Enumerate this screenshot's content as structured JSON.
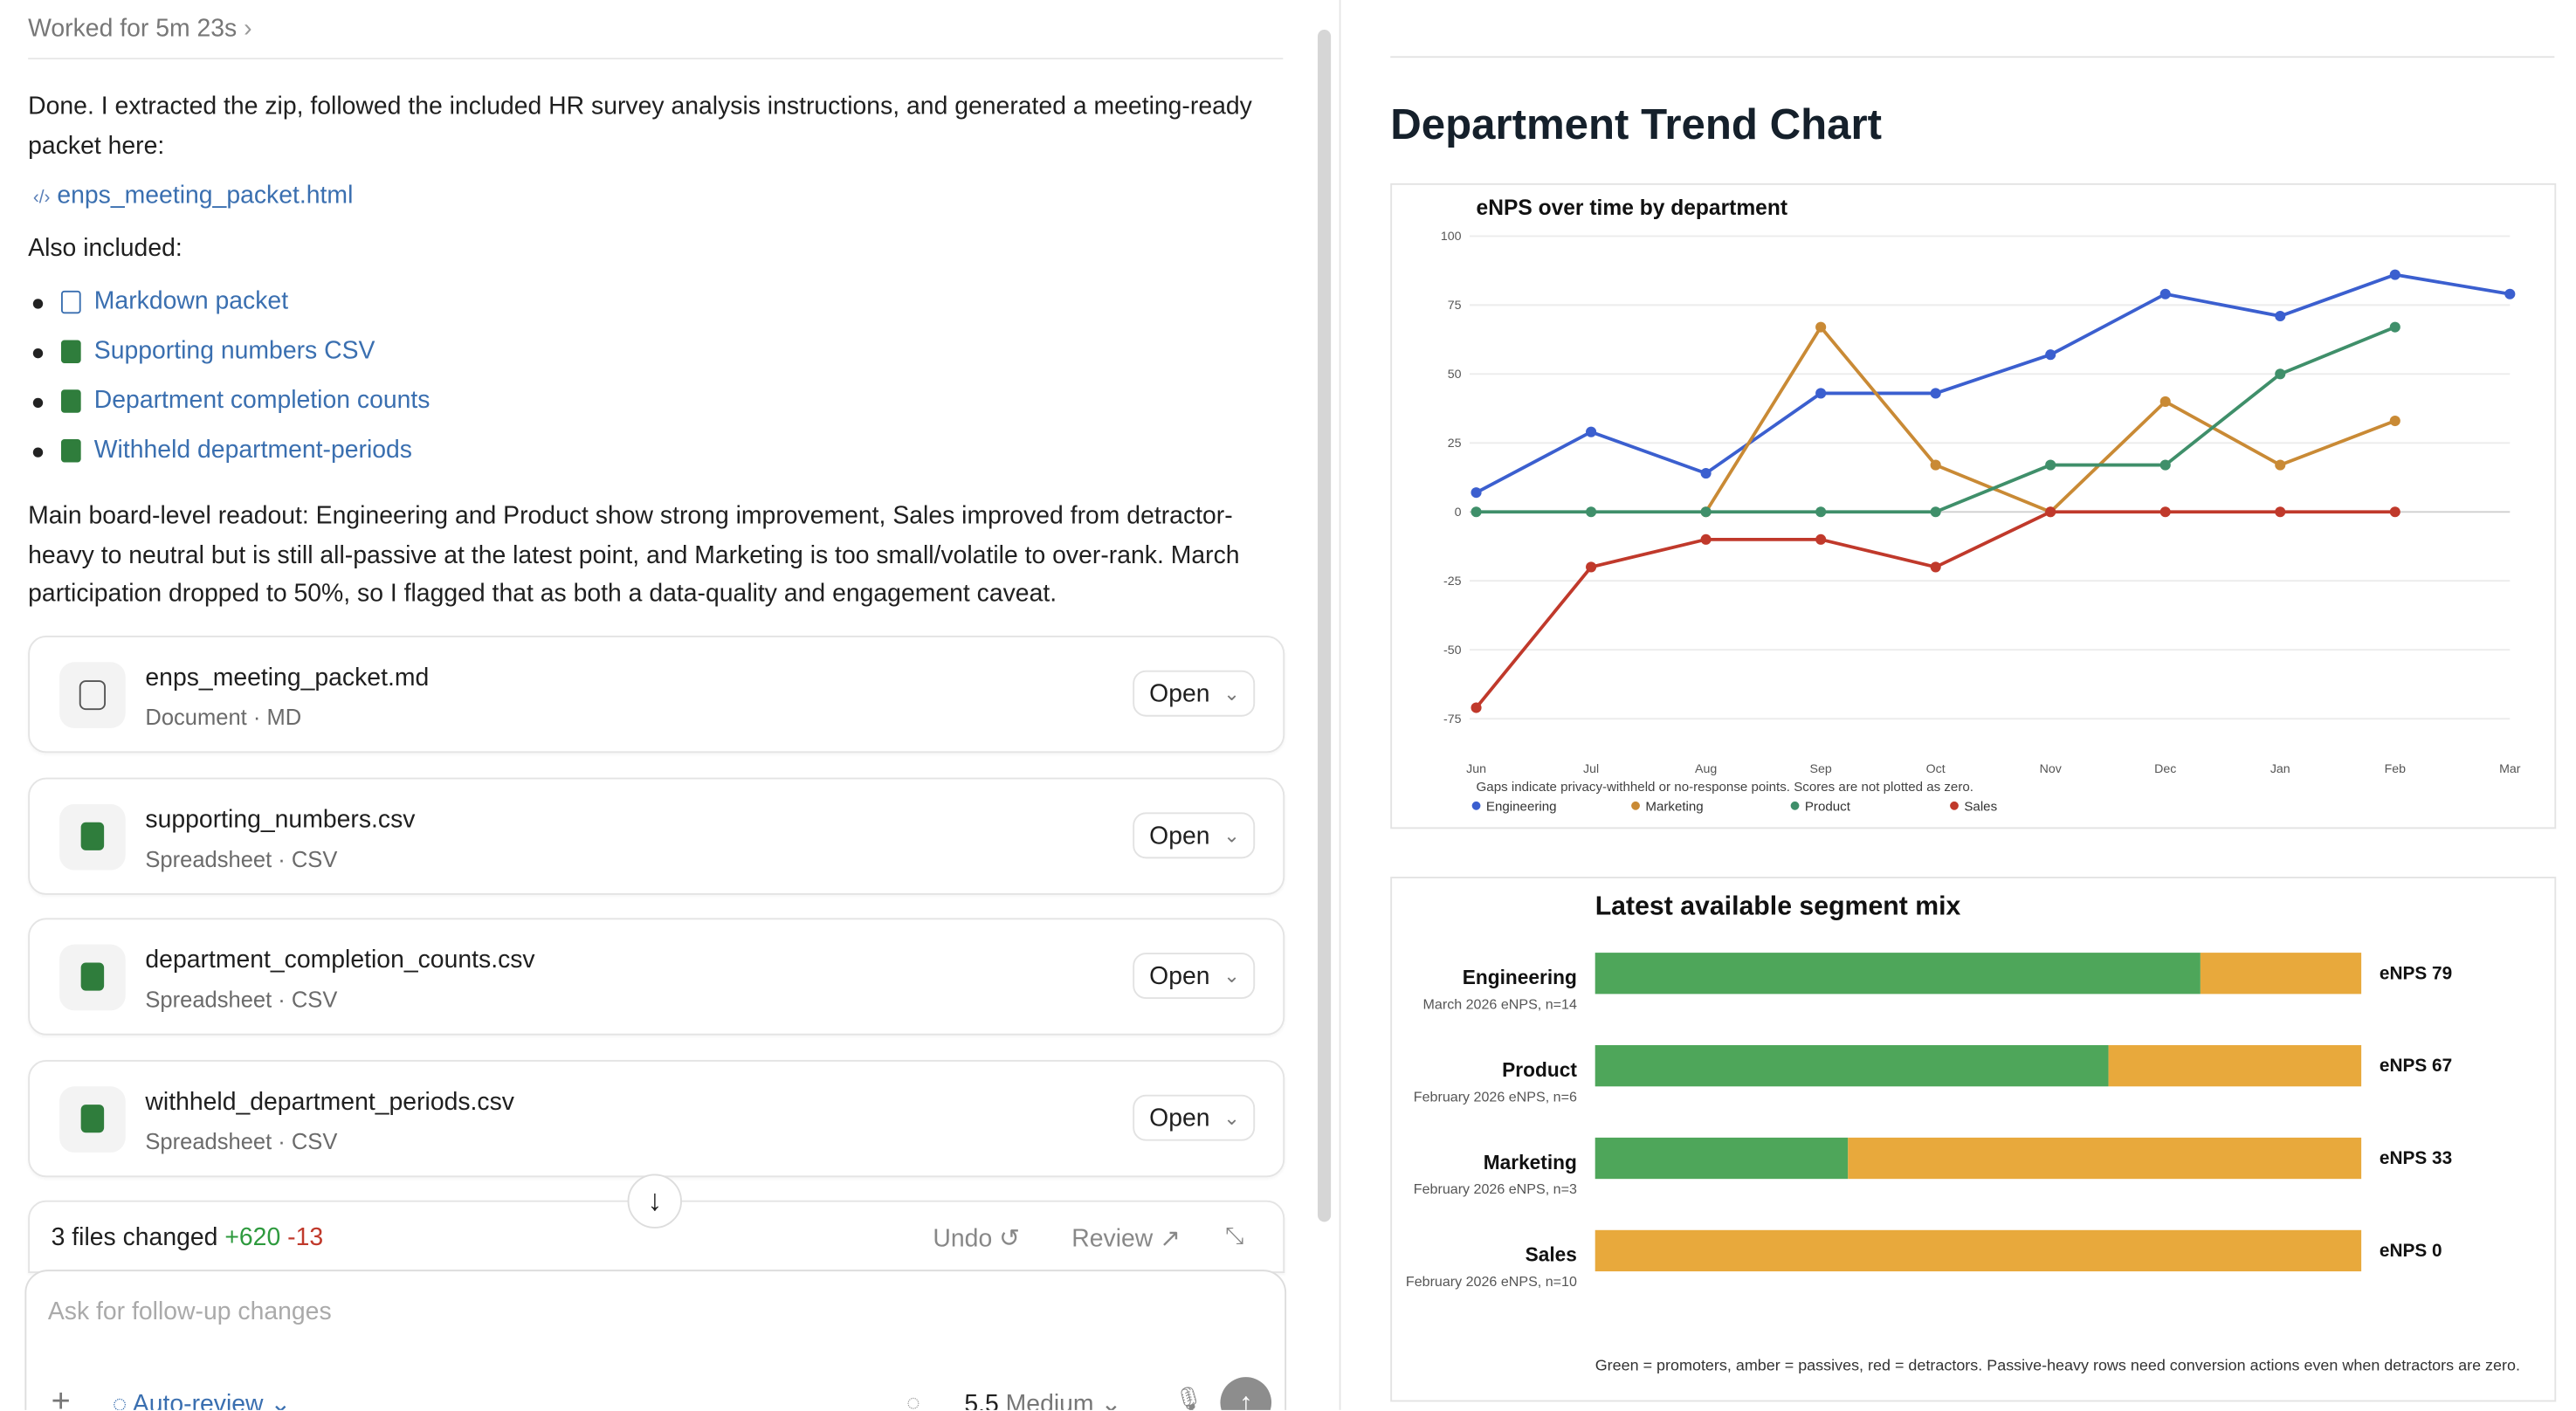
{
  "header": {
    "status": "Worked for 5m 23s"
  },
  "message": {
    "intro": "Done. I extracted the zip, followed the included HR survey analysis instructions, and generated a meeting-ready packet here:",
    "main_link": "enps_meeting_packet.html",
    "also_label": "Also included:",
    "links": [
      "Markdown packet",
      "Supporting numbers CSV",
      "Department completion counts",
      "Withheld department-periods"
    ],
    "readout": "Main board-level readout: Engineering and Product show strong improvement, Sales improved from detractor-heavy to neutral but is still all-passive at the latest point, and Marketing is too small/volatile to over-rank. March participation dropped to 50%, so I flagged that as both a data-quality and engagement caveat."
  },
  "files": [
    {
      "name": "enps_meeting_packet.md",
      "kind": "Document · MD",
      "action": "Open"
    },
    {
      "name": "supporting_numbers.csv",
      "kind": "Spreadsheet · CSV",
      "action": "Open"
    },
    {
      "name": "department_completion_counts.csv",
      "kind": "Spreadsheet · CSV",
      "action": "Open"
    },
    {
      "name": "withheld_department_periods.csv",
      "kind": "Spreadsheet · CSV",
      "action": "Open"
    }
  ],
  "changes": {
    "summary": "3 files changed",
    "added": "+620",
    "removed": "-13",
    "undo": "Undo",
    "review": "Review"
  },
  "composer": {
    "placeholder": "Ask for follow-up changes",
    "mode": "Auto-review",
    "model": "5.5",
    "effort": "Medium"
  },
  "report": {
    "title": "Department Trend Chart"
  },
  "chart_data": [
    {
      "type": "line",
      "title": "eNPS over time by department",
      "categories": [
        "Jun",
        "Jul",
        "Aug",
        "Sep",
        "Oct",
        "Nov",
        "Dec",
        "Jan",
        "Feb",
        "Mar"
      ],
      "series": [
        {
          "name": "Engineering",
          "color": "#3b5fcf",
          "values": [
            7,
            29,
            14,
            43,
            43,
            57,
            79,
            71,
            86,
            79
          ]
        },
        {
          "name": "Marketing",
          "color": "#c98a35",
          "values": [
            null,
            null,
            0,
            67,
            17,
            0,
            40,
            17,
            33,
            null
          ]
        },
        {
          "name": "Product",
          "color": "#3f8f6a",
          "values": [
            0,
            0,
            0,
            0,
            0,
            17,
            17,
            50,
            67,
            null
          ]
        },
        {
          "name": "Sales",
          "color": "#c0392b",
          "values": [
            -71,
            -20,
            -10,
            -10,
            -20,
            0,
            0,
            0,
            0,
            null
          ]
        }
      ],
      "ylim": [
        -85,
        100
      ],
      "yticks": [
        100,
        75,
        50,
        25,
        0,
        -25,
        -50,
        -75
      ],
      "grid": true,
      "note": "Gaps indicate privacy-withheld or no-response points. Scores are not plotted as zero.",
      "legend": "bottom"
    },
    {
      "type": "stacked-bar",
      "title": "Latest available segment mix",
      "categories": [
        "Engineering",
        "Product",
        "Marketing",
        "Sales"
      ],
      "row_notes": [
        "March 2026 eNPS, n=14",
        "February 2026 eNPS, n=6",
        "February 2026 eNPS, n=3",
        "February 2026 eNPS, n=10"
      ],
      "end_labels": [
        "eNPS 79",
        "eNPS 67",
        "eNPS 33",
        "eNPS 0"
      ],
      "series": [
        {
          "color": "#4ea65a",
          "values": [
            79,
            67,
            33,
            0
          ]
        },
        {
          "color": "#e8a93c",
          "values": [
            21,
            33,
            67,
            100
          ]
        }
      ],
      "xlim": [
        0,
        100
      ],
      "note": "Green = promoters, amber = passives, red = detractors. Passive-heavy rows need conversion actions even when detractors are zero."
    }
  ]
}
